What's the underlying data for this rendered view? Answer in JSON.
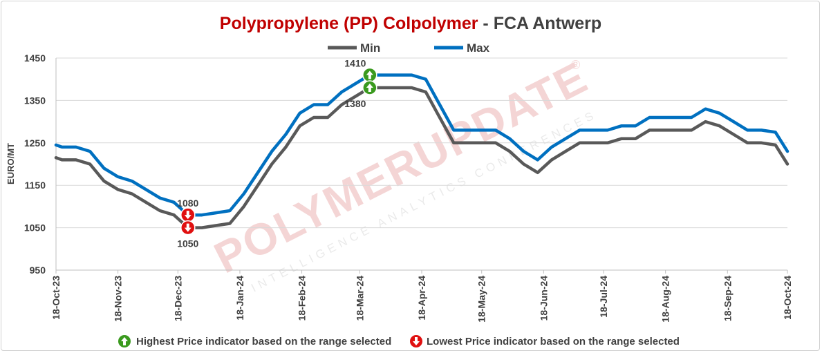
{
  "chart_data": {
    "type": "line",
    "title_part1": "Polypropylene (PP) Colpolymer",
    "title_sep": " - ",
    "title_part2": "FCA Antwerp",
    "ylabel": "EURO/MT",
    "ylim": [
      950,
      1450
    ],
    "yticks": [
      950,
      1050,
      1150,
      1250,
      1350,
      1450
    ],
    "grid": true,
    "legend_position": "top-center",
    "xtick_labels": [
      "18-Oct-23",
      "18-Nov-23",
      "18-Dec-23",
      "18-Jan-24",
      "18-Feb-24",
      "18-Mar-24",
      "18-Apr-24",
      "18-May-24",
      "18-Jun-24",
      "18-Jul-24",
      "18-Aug-24",
      "18-Sep-24",
      "18-Oct-24"
    ],
    "x": [
      "2023-10-18",
      "2023-10-21",
      "2023-10-28",
      "2023-11-04",
      "2023-11-11",
      "2023-11-18",
      "2023-11-25",
      "2023-12-02",
      "2023-12-09",
      "2023-12-16",
      "2023-12-23",
      "2023-12-30",
      "2024-01-06",
      "2024-01-13",
      "2024-01-20",
      "2024-01-27",
      "2024-02-03",
      "2024-02-10",
      "2024-02-17",
      "2024-02-24",
      "2024-03-02",
      "2024-03-09",
      "2024-03-16",
      "2024-03-23",
      "2024-03-30",
      "2024-04-06",
      "2024-04-13",
      "2024-04-20",
      "2024-04-27",
      "2024-05-04",
      "2024-05-11",
      "2024-05-18",
      "2024-05-25",
      "2024-06-01",
      "2024-06-08",
      "2024-06-15",
      "2024-06-22",
      "2024-06-29",
      "2024-07-06",
      "2024-07-13",
      "2024-07-20",
      "2024-07-27",
      "2024-08-03",
      "2024-08-10",
      "2024-08-17",
      "2024-08-24",
      "2024-08-31",
      "2024-09-07",
      "2024-09-14",
      "2024-09-21",
      "2024-09-28",
      "2024-10-05",
      "2024-10-12",
      "2024-10-18"
    ],
    "series": [
      {
        "name": "Min",
        "color": "#595959",
        "values": [
          1215,
          1210,
          1210,
          1200,
          1160,
          1140,
          1130,
          1110,
          1090,
          1080,
          1050,
          1050,
          1055,
          1060,
          1100,
          1150,
          1200,
          1240,
          1290,
          1310,
          1310,
          1340,
          1360,
          1380,
          1380,
          1380,
          1380,
          1370,
          1310,
          1250,
          1250,
          1250,
          1250,
          1230,
          1200,
          1180,
          1210,
          1230,
          1250,
          1250,
          1250,
          1260,
          1260,
          1280,
          1280,
          1280,
          1280,
          1300,
          1290,
          1270,
          1250,
          1250,
          1245,
          1200
        ]
      },
      {
        "name": "Max",
        "color": "#0070c0",
        "values": [
          1245,
          1240,
          1240,
          1230,
          1190,
          1170,
          1160,
          1140,
          1120,
          1110,
          1080,
          1080,
          1085,
          1090,
          1130,
          1180,
          1230,
          1270,
          1320,
          1340,
          1340,
          1370,
          1390,
          1410,
          1410,
          1410,
          1410,
          1400,
          1340,
          1280,
          1280,
          1280,
          1280,
          1260,
          1230,
          1210,
          1240,
          1260,
          1280,
          1280,
          1280,
          1290,
          1290,
          1310,
          1310,
          1310,
          1310,
          1330,
          1320,
          1300,
          1280,
          1280,
          1275,
          1230
        ]
      }
    ],
    "annotations": [
      {
        "label": "1410",
        "x": "2024-03-23",
        "y": 1410,
        "kind": "highest"
      },
      {
        "label": "1380",
        "x": "2024-03-23",
        "y": 1380,
        "kind": "highest"
      },
      {
        "label": "1080",
        "x": "2023-12-23",
        "y": 1080,
        "kind": "lowest"
      },
      {
        "label": "1050",
        "x": "2023-12-23",
        "y": 1050,
        "kind": "lowest"
      }
    ]
  },
  "colors": {
    "title_red": "#c00000",
    "title_dark": "#404040",
    "grid": "#d9d9d9",
    "up_green": "#3a9a1e",
    "down_red": "#e01010"
  },
  "watermark": {
    "brand": "POLYMERUPDATE",
    "registered": "®",
    "tagline": "INTELLIGENCE  ANALYTICS  CONFERENCES"
  },
  "footer": {
    "highest_icon": "up-arrow-icon",
    "highest_text": "Highest Price indicator based on the range selected",
    "lowest_icon": "down-arrow-icon",
    "lowest_text": "Lowest Price indicator based on the range selected"
  }
}
